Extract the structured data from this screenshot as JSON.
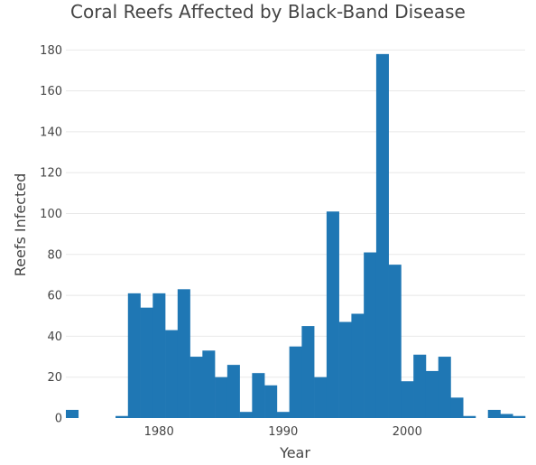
{
  "chart_data": {
    "type": "bar",
    "title": "Coral Reefs Affected by Black-Band Disease",
    "xlabel": "Year",
    "ylabel": "Reefs Infected",
    "xlim": [
      1972.5,
      2009.5
    ],
    "ylim": [
      0,
      185
    ],
    "grid": true,
    "legend": "none",
    "bar_color": "#1f77b4",
    "x_ticks": [
      1980,
      1990,
      2000
    ],
    "y_ticks": [
      0,
      20,
      40,
      60,
      80,
      100,
      120,
      140,
      160,
      180
    ],
    "x": [
      1973,
      1974,
      1975,
      1976,
      1977,
      1978,
      1979,
      1980,
      1981,
      1982,
      1983,
      1984,
      1985,
      1986,
      1987,
      1988,
      1989,
      1990,
      1991,
      1992,
      1993,
      1994,
      1995,
      1996,
      1997,
      1998,
      1999,
      2000,
      2001,
      2002,
      2003,
      2004,
      2005,
      2006,
      2007,
      2008,
      2009
    ],
    "values": [
      4,
      0,
      0,
      0,
      1,
      61,
      54,
      61,
      43,
      63,
      30,
      33,
      20,
      26,
      3,
      22,
      16,
      3,
      35,
      45,
      20,
      101,
      47,
      51,
      81,
      178,
      75,
      18,
      31,
      23,
      30,
      10,
      1,
      0,
      4,
      2,
      1
    ]
  }
}
